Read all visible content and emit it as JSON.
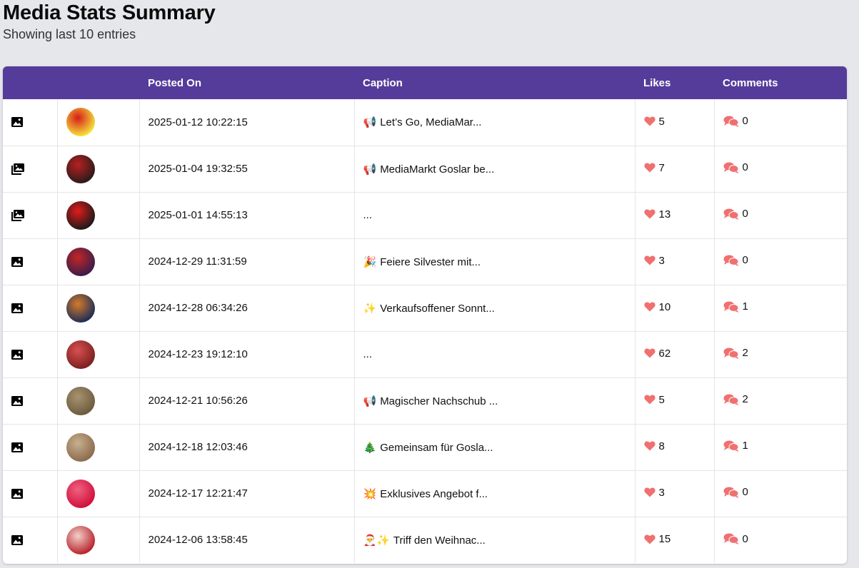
{
  "header": {
    "title": "Media Stats Summary",
    "subtitle": "Showing last 10 entries"
  },
  "table": {
    "columns": [
      "",
      "",
      "Posted On",
      "Caption",
      "Likes",
      "Comments"
    ],
    "rows": [
      {
        "type": "image-icon",
        "thumb": [
          "#f5e63a",
          "#d71b1b"
        ],
        "posted": "2025-01-12 10:22:15",
        "emoji": "📢",
        "caption": "Let’s Go, MediaMar...",
        "likes": "5",
        "comments": "0"
      },
      {
        "type": "carousel-icon",
        "thumb": [
          "#2a1a1a",
          "#b82020"
        ],
        "posted": "2025-01-04 19:32:55",
        "emoji": "📢",
        "caption": "MediaMarkt Goslar be...",
        "likes": "7",
        "comments": "0"
      },
      {
        "type": "carousel-icon",
        "thumb": [
          "#1a1a1a",
          "#e11b1b"
        ],
        "posted": "2025-01-01 14:55:13",
        "emoji": "",
        "caption": "...",
        "likes": "13",
        "comments": "0"
      },
      {
        "type": "image-icon",
        "thumb": [
          "#3a1c4a",
          "#c22626"
        ],
        "posted": "2024-12-29 11:31:59",
        "emoji": "🎉",
        "caption": "Feiere Silvester mit...",
        "likes": "3",
        "comments": "0"
      },
      {
        "type": "image-icon",
        "thumb": [
          "#1c2c55",
          "#d47a2a"
        ],
        "posted": "2024-12-28 06:34:26",
        "emoji": "✨",
        "caption": "Verkaufsoffener Sonnt...",
        "likes": "10",
        "comments": "1"
      },
      {
        "type": "image-icon",
        "thumb": [
          "#7a1f1f",
          "#d95050"
        ],
        "posted": "2024-12-23 19:12:10",
        "emoji": "",
        "caption": "...",
        "likes": "62",
        "comments": "2"
      },
      {
        "type": "image-icon",
        "thumb": [
          "#6b5a3d",
          "#a89370"
        ],
        "posted": "2024-12-21 10:56:26",
        "emoji": "📢",
        "caption": "Magischer Nachschub ...",
        "likes": "5",
        "comments": "2"
      },
      {
        "type": "image-icon",
        "thumb": [
          "#8a6a4d",
          "#c9b08e"
        ],
        "posted": "2024-12-18 12:03:46",
        "emoji": "🎄",
        "caption": "Gemeinsam für Gosla...",
        "likes": "8",
        "comments": "1"
      },
      {
        "type": "image-icon",
        "thumb": [
          "#d0103a",
          "#f06080"
        ],
        "posted": "2024-12-17 12:21:47",
        "emoji": "💥",
        "caption": "Exklusives Angebot f...",
        "likes": "3",
        "comments": "0"
      },
      {
        "type": "image-icon",
        "thumb": [
          "#b8202a",
          "#f2d0c8"
        ],
        "posted": "2024-12-06 13:58:45",
        "emoji": "🎅✨",
        "caption": "Triff den Weihnac...",
        "likes": "15",
        "comments": "0"
      }
    ]
  },
  "colors": {
    "header_bg": "#553c9a",
    "heart": "#f07070",
    "comment": "#f07070",
    "page_bg": "#e6e7eb"
  }
}
